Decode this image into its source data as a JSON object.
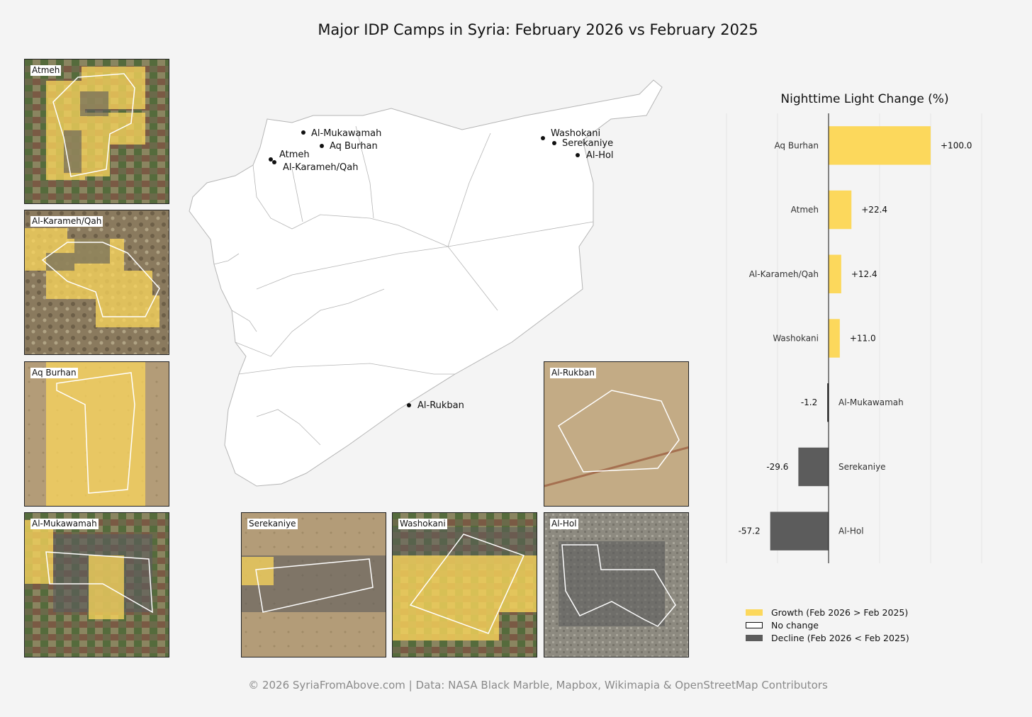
{
  "title": "Major IDP Camps in Syria: February 2026 vs February 2025",
  "footer": "© 2026 SyriaFromAbove.com | Data: NASA Black Marble, Mapbox, Wikimapia & OpenStreetMap Contributors",
  "colors": {
    "growth": "#fcd85c",
    "decline": "#5c5c5c",
    "background": "#f4f4f4",
    "outline": "#ffffff"
  },
  "map": {
    "labels": {
      "al_mukawamah": "Al-Mukawamah",
      "aq_burhan": "Aq Burhan",
      "atmeh": "Atmeh",
      "al_karameh": "Al-Karameh/Qah",
      "washokani": "Washokani",
      "serekaniye": "Serekaniye",
      "al_hol": "Al-Hol",
      "al_rukban": "Al-Rukban"
    }
  },
  "insets": {
    "atmeh": "Atmeh",
    "al_karameh": "Al-Karameh/Qah",
    "aq_burhan": "Aq Burhan",
    "al_mukawamah": "Al-Mukawamah",
    "serekaniye": "Serekaniye",
    "washokani": "Washokani",
    "al_hol": "Al-Hol",
    "al_rukban": "Al-Rukban"
  },
  "chart_data": {
    "type": "bar",
    "orientation": "horizontal",
    "title": "Nighttime Light Change (%)",
    "categories": [
      "Aq Burhan",
      "Atmeh",
      "Al-Karameh/Qah",
      "Washokani",
      "Al-Mukawamah",
      "Serekaniye",
      "Al-Hol"
    ],
    "values": [
      100.0,
      22.4,
      12.4,
      11.0,
      -1.2,
      -29.6,
      -57.2
    ],
    "value_labels": [
      "+100.0",
      "+22.4",
      "+12.4",
      "+11.0",
      "-1.2",
      "-29.6",
      "-57.2"
    ],
    "xlim": [
      -100,
      150
    ],
    "grid": "vertical",
    "legend": "bottom"
  },
  "legend": {
    "growth": "Growth (Feb 2026 > Feb 2025)",
    "no_change": "No change",
    "decline": "Decline (Feb 2026 < Feb 2025)"
  }
}
